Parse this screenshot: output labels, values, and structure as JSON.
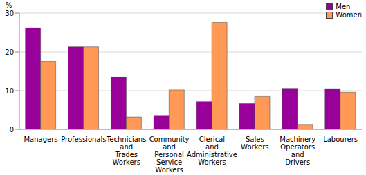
{
  "chart_data": {
    "type": "bar",
    "y_label": "%",
    "categories": [
      "Managers",
      "Professionals",
      "Technicians and Trades Workers",
      "Community and Personal Service Workers",
      "Clerical and Administrative Workers",
      "Sales Workers",
      "Machinery Operators and Drivers",
      "Labourers"
    ],
    "series": [
      {
        "name": "Men",
        "color": "#990099",
        "values": [
          26.2,
          21.3,
          13.5,
          3.6,
          7.2,
          6.7,
          10.6,
          10.5
        ]
      },
      {
        "name": "Women",
        "color": "#ff9955",
        "values": [
          17.6,
          21.3,
          3.2,
          10.2,
          27.6,
          8.5,
          1.3,
          9.6
        ]
      }
    ],
    "ylim": [
      0,
      30
    ],
    "yticks": [
      0,
      10,
      20,
      30
    ],
    "grid": true,
    "legend": "top-right"
  }
}
